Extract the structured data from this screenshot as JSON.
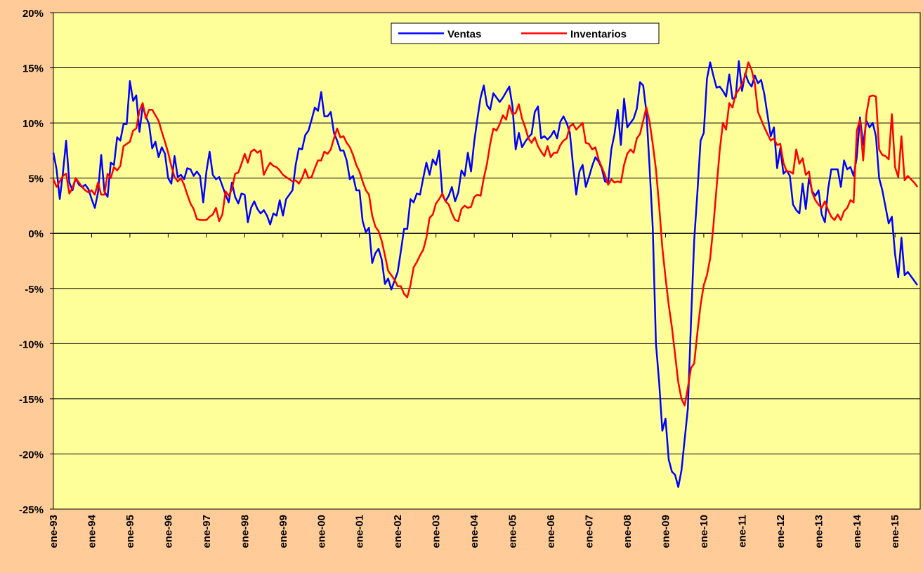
{
  "chart_data": {
    "type": "line",
    "categories": [
      "ene-93",
      null,
      null,
      null,
      null,
      null,
      null,
      null,
      null,
      null,
      null,
      null,
      "ene-94",
      null,
      null,
      null,
      null,
      null,
      null,
      null,
      null,
      null,
      null,
      null,
      "ene-95",
      null,
      null,
      null,
      null,
      null,
      null,
      null,
      null,
      null,
      null,
      null,
      "ene-96",
      null,
      null,
      null,
      null,
      null,
      null,
      null,
      null,
      null,
      null,
      null,
      "ene-97",
      null,
      null,
      null,
      null,
      null,
      null,
      null,
      null,
      null,
      null,
      null,
      "ene-98",
      null,
      null,
      null,
      null,
      null,
      null,
      null,
      null,
      null,
      null,
      null,
      "ene-99",
      null,
      null,
      null,
      null,
      null,
      null,
      null,
      null,
      null,
      null,
      null,
      "ene-00",
      null,
      null,
      null,
      null,
      null,
      null,
      null,
      null,
      null,
      null,
      null,
      "ene-01",
      null,
      null,
      null,
      null,
      null,
      null,
      null,
      null,
      null,
      null,
      null,
      "ene-02",
      null,
      null,
      null,
      null,
      null,
      null,
      null,
      null,
      null,
      null,
      null,
      "ene-03",
      null,
      null,
      null,
      null,
      null,
      null,
      null,
      null,
      null,
      null,
      null,
      "ene-04",
      null,
      null,
      null,
      null,
      null,
      null,
      null,
      null,
      null,
      null,
      null,
      "ene-05",
      null,
      null,
      null,
      null,
      null,
      null,
      null,
      null,
      null,
      null,
      null,
      "ene-06",
      null,
      null,
      null,
      null,
      null,
      null,
      null,
      null,
      null,
      null,
      null,
      "ene-07",
      null,
      null,
      null,
      null,
      null,
      null,
      null,
      null,
      null,
      null,
      null,
      "ene-08",
      null,
      null,
      null,
      null,
      null,
      null,
      null,
      null,
      null,
      null,
      null,
      "ene-09",
      null,
      null,
      null,
      null,
      null,
      null,
      null,
      null,
      null,
      null,
      null,
      "ene-10",
      null,
      null,
      null,
      null,
      null,
      null,
      null,
      null,
      null,
      null,
      null,
      "ene-11",
      null,
      null,
      null,
      null,
      null,
      null,
      null,
      null,
      null,
      null,
      null,
      "ene-12",
      null,
      null,
      null,
      null,
      null,
      null,
      null,
      null,
      null,
      null,
      null,
      "ene-13",
      null,
      null,
      null,
      null,
      null,
      null,
      null,
      null,
      null,
      null,
      null,
      "ene-14",
      null,
      null,
      null,
      null,
      null,
      null,
      null,
      null,
      null,
      null,
      null,
      "ene-15",
      null,
      null,
      null,
      null,
      null,
      null,
      null
    ],
    "series": [
      {
        "name": "Ventas",
        "color": "#0000FF",
        "values": [
          7.3,
          5.8,
          3.1,
          5.5,
          8.4,
          4.6,
          3.9,
          5.0,
          4.4,
          4.2,
          4.4,
          4.0,
          3.1,
          2.3,
          3.7,
          7.1,
          3.8,
          3.3,
          6.4,
          6.2,
          8.7,
          8.4,
          9.9,
          9.9,
          13.8,
          12.0,
          12.5,
          9.2,
          11.5,
          10.6,
          9.9,
          7.7,
          8.3,
          6.9,
          7.8,
          7.2,
          5.0,
          4.5,
          7.0,
          5.1,
          5.3,
          4.9,
          5.9,
          5.8,
          5.2,
          5.6,
          5.2,
          2.8,
          5.6,
          7.4,
          5.3,
          4.9,
          5.1,
          4.3,
          3.5,
          2.8,
          4.6,
          3.3,
          2.7,
          3.6,
          3.5,
          1.0,
          2.3,
          2.9,
          2.2,
          1.8,
          2.1,
          1.6,
          0.8,
          1.8,
          1.6,
          3.0,
          1.6,
          3.1,
          3.5,
          3.9,
          6.2,
          7.7,
          7.6,
          8.9,
          9.3,
          10.3,
          11.4,
          11.1,
          12.8,
          10.6,
          10.6,
          11.0,
          9.1,
          8.4,
          7.5,
          7.5,
          6.6,
          4.9,
          5.2,
          3.9,
          3.9,
          1.1,
          0.1,
          0.5,
          -2.7,
          -1.8,
          -1.4,
          -2.4,
          -4.6,
          -4.1,
          -5.1,
          -4.3,
          -3.5,
          -1.6,
          0.4,
          0.4,
          3.1,
          2.8,
          3.6,
          3.5,
          5.0,
          6.4,
          5.3,
          6.7,
          6.2,
          7.5,
          3.5,
          2.9,
          3.4,
          4.2,
          2.9,
          3.7,
          5.7,
          5.2,
          7.3,
          5.6,
          8.3,
          10.4,
          12.3,
          13.4,
          11.6,
          11.2,
          12.7,
          12.3,
          11.9,
          12.3,
          12.8,
          13.3,
          11.5,
          7.6,
          9.1,
          7.8,
          8.3,
          8.7,
          9.0,
          11.0,
          11.5,
          8.6,
          8.8,
          8.5,
          8.8,
          9.3,
          8.6,
          10.1,
          10.6,
          10.0,
          9.1,
          6.1,
          3.5,
          5.6,
          6.2,
          4.2,
          5.1,
          6.1,
          6.9,
          6.5,
          5.9,
          4.7,
          4.6,
          7.6,
          9.0,
          11.2,
          8.0,
          12.2,
          9.6,
          10.0,
          10.4,
          11.3,
          13.7,
          13.4,
          11.0,
          6.0,
          0.5,
          -10.0,
          -13.5,
          -17.9,
          -16.8,
          -20.5,
          -21.6,
          -21.9,
          -23.0,
          -21.5,
          -18.7,
          -15.9,
          -8.0,
          -0.6,
          3.7,
          8.4,
          9.1,
          14.0,
          15.5,
          14.3,
          13.2,
          13.3,
          12.9,
          12.4,
          14.4,
          12.2,
          12.3,
          15.6,
          12.9,
          14.5,
          13.7,
          13.3,
          14.3,
          13.6,
          13.9,
          12.6,
          10.7,
          8.8,
          9.6,
          5.9,
          7.7,
          5.4,
          5.7,
          5.2,
          2.6,
          2.1,
          1.8,
          4.5,
          2.2,
          5.0,
          3.8,
          3.4,
          3.9,
          1.7,
          1.0,
          4.0,
          5.8,
          5.8,
          5.8,
          4.2,
          6.6,
          5.8,
          6.0,
          5.2,
          6.9,
          10.5,
          8.0,
          10.2,
          9.6,
          10.0,
          8.8,
          5.0,
          3.9,
          2.4,
          0.9,
          1.5,
          -1.9,
          -4.0,
          -0.4,
          -3.8,
          -3.5,
          -3.9,
          -4.3,
          -4.7
        ]
      },
      {
        "name": "Inventarios",
        "color": "#FF0000",
        "values": [
          4.9,
          4.2,
          4.7,
          5.2,
          5.4,
          3.6,
          4.1,
          5.0,
          4.6,
          4.2,
          3.9,
          3.7,
          3.9,
          3.5,
          4.6,
          3.5,
          3.5,
          5.4,
          5.0,
          6.0,
          5.7,
          6.1,
          7.9,
          8.1,
          8.3,
          9.3,
          9.5,
          11.1,
          11.8,
          10.4,
          11.2,
          11.2,
          10.7,
          10.2,
          9.2,
          8.3,
          7.3,
          6.1,
          5.1,
          4.7,
          5.0,
          4.4,
          3.5,
          2.7,
          2.2,
          1.3,
          1.2,
          1.2,
          1.2,
          1.5,
          1.7,
          2.3,
          1.1,
          1.7,
          3.8,
          3.4,
          4.0,
          5.4,
          5.5,
          6.3,
          7.2,
          6.4,
          7.4,
          7.6,
          7.3,
          7.5,
          5.3,
          5.9,
          6.4,
          6.1,
          6.0,
          5.7,
          5.3,
          5.1,
          4.9,
          4.7,
          4.8,
          4.5,
          5.0,
          5.8,
          5.0,
          5.1,
          5.9,
          6.6,
          6.6,
          7.4,
          7.2,
          7.6,
          8.6,
          9.5,
          8.7,
          8.8,
          8.2,
          7.8,
          7.1,
          6.2,
          5.6,
          4.7,
          3.9,
          3.5,
          1.6,
          0.6,
          0.2,
          -0.7,
          -2.0,
          -3.4,
          -3.8,
          -4.2,
          -4.8,
          -4.8,
          -5.5,
          -5.8,
          -4.7,
          -3.1,
          -2.6,
          -2.0,
          -1.5,
          -0.4,
          1.4,
          1.7,
          2.7,
          3.1,
          3.6,
          2.9,
          2.6,
          1.8,
          1.2,
          1.1,
          2.2,
          2.5,
          2.3,
          2.4,
          3.3,
          3.5,
          3.4,
          5.0,
          6.3,
          8.1,
          9.5,
          9.3,
          9.9,
          10.7,
          10.3,
          11.6,
          10.8,
          10.9,
          11.7,
          10.4,
          9.6,
          8.6,
          8.2,
          8.7,
          7.9,
          7.4,
          7.0,
          7.9,
          6.9,
          7.3,
          7.3,
          8.0,
          8.4,
          8.6,
          9.7,
          9.9,
          9.4,
          9.7,
          10.0,
          8.2,
          8.1,
          7.6,
          7.8,
          6.7,
          6.0,
          5.3,
          4.4,
          4.9,
          4.6,
          4.7,
          4.6,
          6.2,
          7.2,
          7.6,
          7.3,
          8.6,
          9.0,
          10.2,
          11.4,
          10.1,
          8.1,
          5.8,
          2.5,
          -1.3,
          -4.0,
          -6.5,
          -8.5,
          -11.0,
          -13.5,
          -15.0,
          -15.6,
          -14.0,
          -12.2,
          -11.8,
          -9.0,
          -6.5,
          -4.7,
          -3.8,
          -2.3,
          0.6,
          4.1,
          7.5,
          10.0,
          9.4,
          11.8,
          11.4,
          12.6,
          13.0,
          13.5,
          14.3,
          15.5,
          14.8,
          13.6,
          11.0,
          10.3,
          9.6,
          9.0,
          8.4,
          8.6,
          8.0,
          8.1,
          6.4,
          5.6,
          5.6,
          5.4,
          7.6,
          6.3,
          6.8,
          5.3,
          5.6,
          3.7,
          3.0,
          2.6,
          2.3,
          2.9,
          2.1,
          1.5,
          1.2,
          1.7,
          1.2,
          2.0,
          2.3,
          3.0,
          2.8,
          9.3,
          10.3,
          6.6,
          10.8,
          12.4,
          12.5,
          12.4,
          7.6,
          7.1,
          7.0,
          6.7,
          10.8,
          6.0,
          5.1,
          8.8,
          4.8,
          5.2,
          4.9,
          4.6,
          4.2
        ]
      }
    ],
    "ylim": [
      -25,
      20
    ],
    "yticks": [
      {
        "value": -25,
        "label": "-25%"
      },
      {
        "value": -20,
        "label": "-20%"
      },
      {
        "value": -15,
        "label": "-15%"
      },
      {
        "value": -10,
        "label": "-10%"
      },
      {
        "value": -5,
        "label": "-5%"
      },
      {
        "value": 0,
        "label": "0%"
      },
      {
        "value": 5,
        "label": "5%"
      },
      {
        "value": 10,
        "label": "10%"
      },
      {
        "value": 15,
        "label": "15%"
      },
      {
        "value": 20,
        "label": "20%"
      }
    ],
    "grid": true,
    "legend": "top",
    "plot_color": "#FFFF99"
  }
}
